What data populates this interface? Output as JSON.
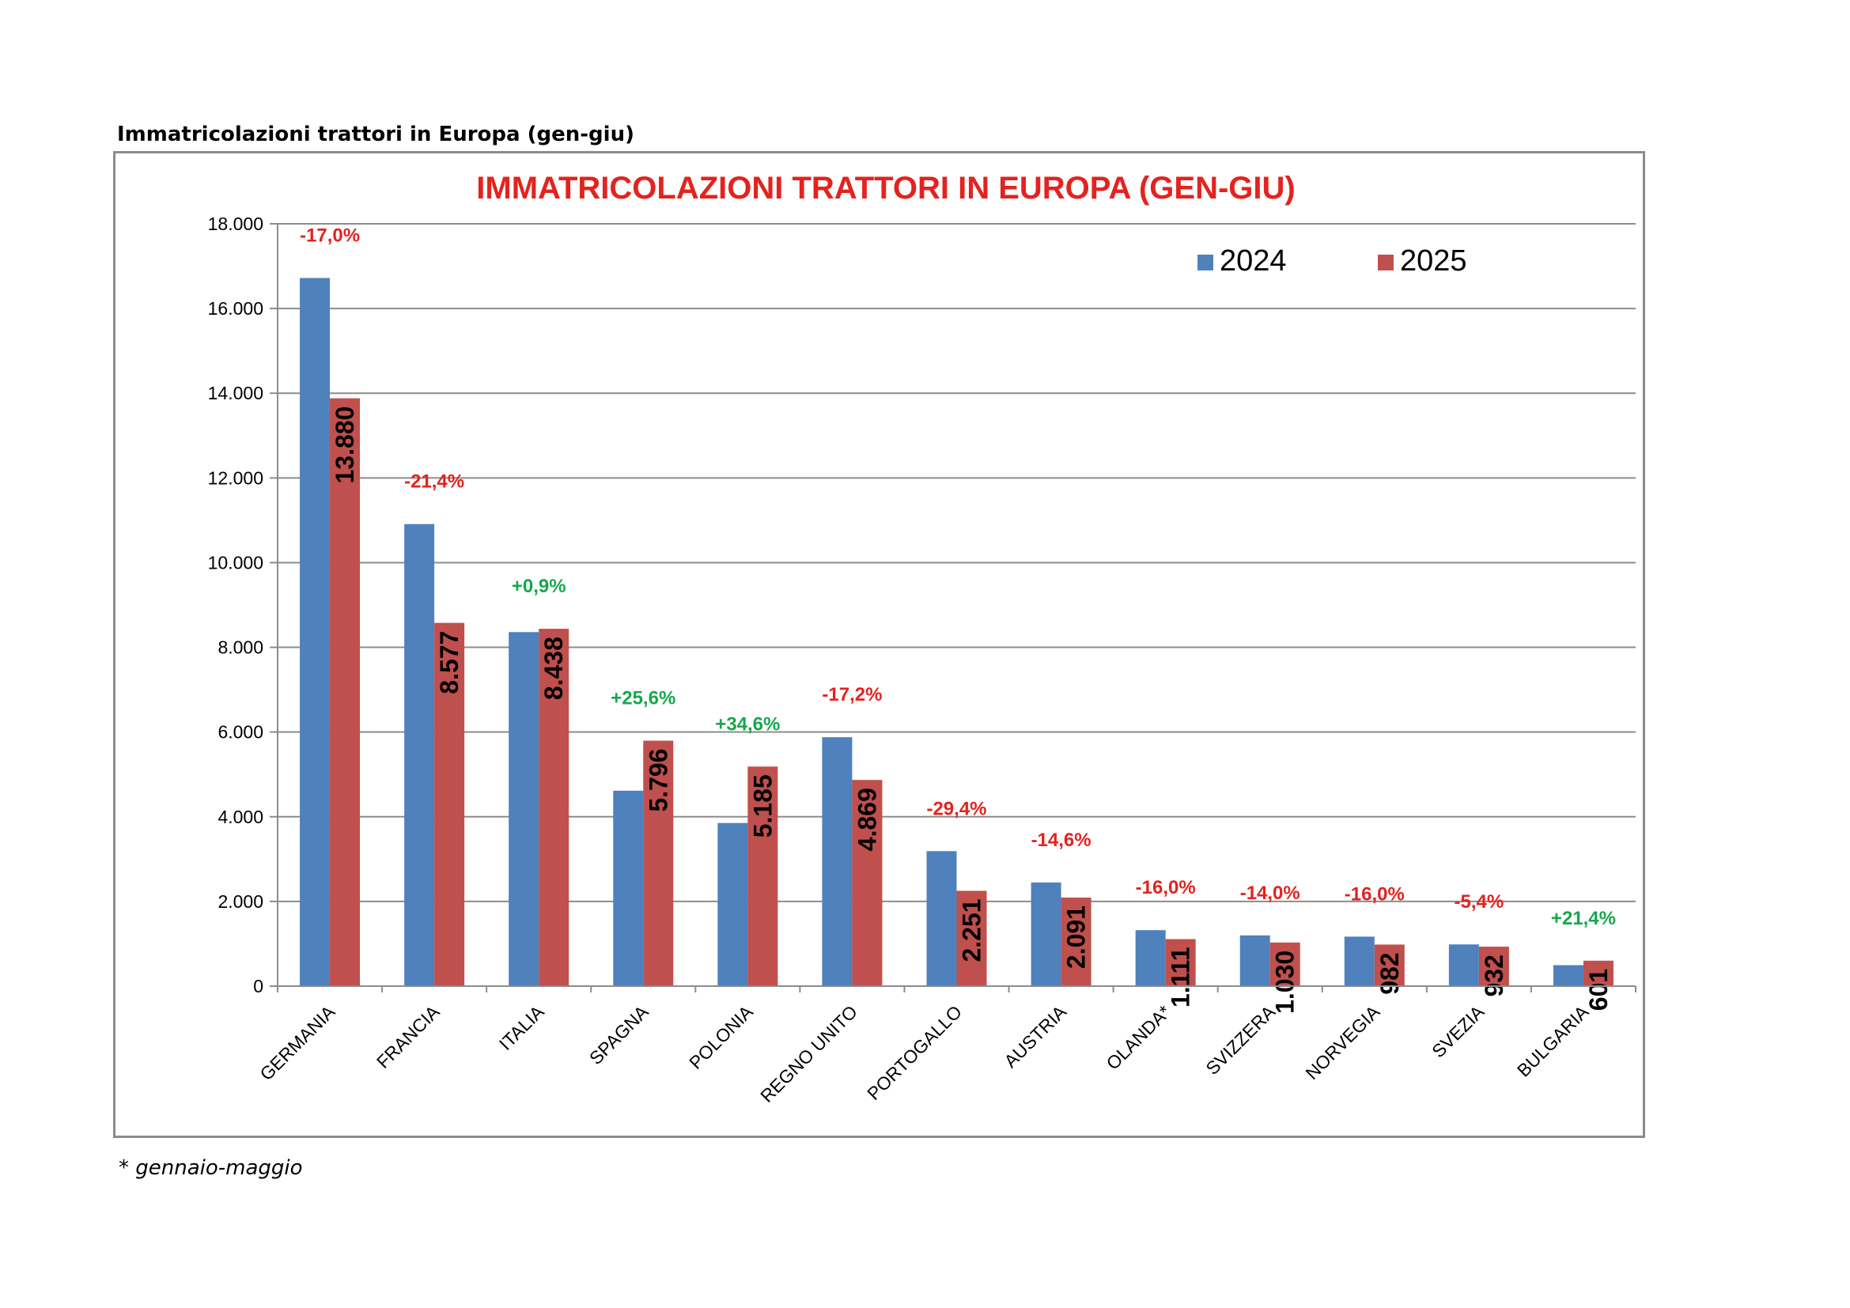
{
  "page": {
    "heading": "Immatricolazioni trattori in Europa (gen-giu)",
    "footnote": "* gennaio-maggio"
  },
  "colors": {
    "series_2024": "#4f81bd",
    "series_2025": "#c0504d",
    "title": "#e3231f",
    "negative_change": "#e3231f",
    "positive_change": "#15a84b",
    "grid": "#8c8c8c"
  },
  "chart_data": {
    "type": "bar",
    "title": "IMMATRICOLAZIONI TRATTORI IN EUROPA (GEN-GIU)",
    "categories": [
      "GERMANIA",
      "FRANCIA",
      "ITALIA",
      "SPAGNA",
      "POLONIA",
      "REGNO UNITO",
      "PORTOGALLO",
      "AUSTRIA",
      "OLANDA*",
      "SVIZZERA",
      "NORVEGIA",
      "SVEZIA",
      "BULGARIA"
    ],
    "series": [
      {
        "name": "2024",
        "values": [
          16720,
          10910,
          8360,
          4615,
          3852,
          5878,
          3188,
          2448,
          1322,
          1198,
          1169,
          985,
          495
        ]
      },
      {
        "name": "2025",
        "values": [
          13880,
          8577,
          8438,
          5796,
          5185,
          4869,
          2251,
          2091,
          1111,
          1030,
          982,
          932,
          601
        ]
      }
    ],
    "data_labels_2025": [
      "13.880",
      "8.577",
      "8.438",
      "5.796",
      "5.185",
      "4.869",
      "2.251",
      "2.091",
      "1.111",
      "1.030",
      "982",
      "932",
      "601"
    ],
    "changes": [
      "-17,0%",
      "-21,4%",
      "+0,9%",
      "+25,6%",
      "+34,6%",
      "-17,2%",
      "-29,4%",
      "-14,6%",
      "-16,0%",
      "-14,0%",
      "-16,0%",
      "-5,4%",
      "+21,4%"
    ],
    "ylim": [
      0,
      18000
    ],
    "yticks": [
      0,
      2000,
      4000,
      6000,
      8000,
      10000,
      12000,
      14000,
      16000,
      18000
    ],
    "ytick_labels": [
      "0",
      "2.000",
      "4.000",
      "6.000",
      "8.000",
      "10.000",
      "12.000",
      "14.000",
      "16.000",
      "18.000"
    ],
    "xlabel": "",
    "ylabel": "",
    "grid": true,
    "legend": "top-right"
  }
}
